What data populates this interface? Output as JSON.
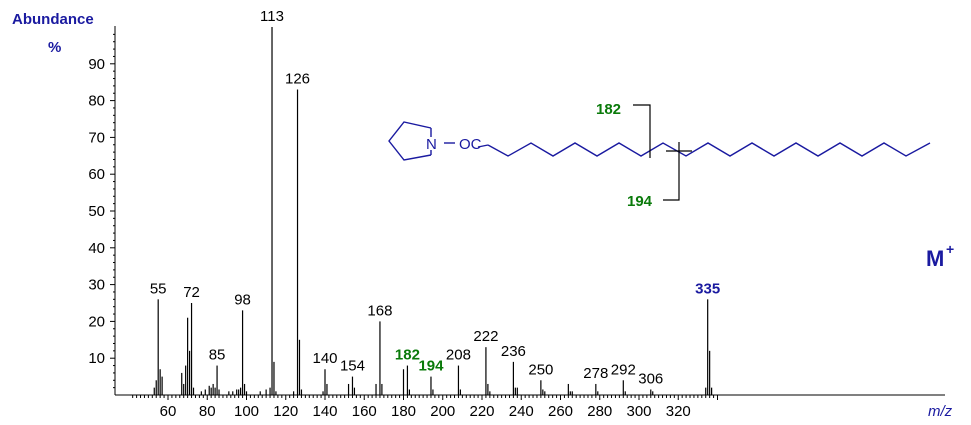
{
  "chart_data": {
    "type": "bar",
    "ylabel_line1": "Abundance",
    "ylabel_line2": "%",
    "xlabel": "m/z",
    "xlim": [
      40,
      340
    ],
    "ylim": [
      0,
      100
    ],
    "x_ticks": [
      60,
      80,
      100,
      120,
      140,
      160,
      180,
      200,
      220,
      240,
      260,
      280,
      300,
      320
    ],
    "y_ticks": [
      10,
      20,
      30,
      40,
      50,
      60,
      70,
      80,
      90
    ],
    "peaks": [
      {
        "x": 53,
        "y": 2
      },
      {
        "x": 54,
        "y": 4
      },
      {
        "x": 55,
        "y": 26
      },
      {
        "x": 56,
        "y": 7
      },
      {
        "x": 57,
        "y": 5
      },
      {
        "x": 67,
        "y": 6
      },
      {
        "x": 68,
        "y": 3
      },
      {
        "x": 69,
        "y": 8
      },
      {
        "x": 70,
        "y": 21
      },
      {
        "x": 71,
        "y": 12
      },
      {
        "x": 72,
        "y": 25
      },
      {
        "x": 73,
        "y": 2
      },
      {
        "x": 77,
        "y": 1
      },
      {
        "x": 79,
        "y": 1.5
      },
      {
        "x": 81,
        "y": 2.5
      },
      {
        "x": 82,
        "y": 2
      },
      {
        "x": 83,
        "y": 3
      },
      {
        "x": 84,
        "y": 2
      },
      {
        "x": 85,
        "y": 8
      },
      {
        "x": 86,
        "y": 1.5
      },
      {
        "x": 91,
        "y": 1
      },
      {
        "x": 93,
        "y": 1
      },
      {
        "x": 95,
        "y": 1.5
      },
      {
        "x": 96,
        "y": 1.5
      },
      {
        "x": 97,
        "y": 2
      },
      {
        "x": 98,
        "y": 23
      },
      {
        "x": 99,
        "y": 3
      },
      {
        "x": 100,
        "y": 1
      },
      {
        "x": 107,
        "y": 1
      },
      {
        "x": 110,
        "y": 1.5
      },
      {
        "x": 112,
        "y": 2
      },
      {
        "x": 113,
        "y": 100
      },
      {
        "x": 114,
        "y": 9
      },
      {
        "x": 115,
        "y": 1
      },
      {
        "x": 124,
        "y": 1
      },
      {
        "x": 126,
        "y": 83
      },
      {
        "x": 127,
        "y": 15
      },
      {
        "x": 128,
        "y": 1.5
      },
      {
        "x": 139,
        "y": 1
      },
      {
        "x": 140,
        "y": 7
      },
      {
        "x": 141,
        "y": 3
      },
      {
        "x": 152,
        "y": 3
      },
      {
        "x": 154,
        "y": 5
      },
      {
        "x": 155,
        "y": 2
      },
      {
        "x": 166,
        "y": 3
      },
      {
        "x": 168,
        "y": 20
      },
      {
        "x": 169,
        "y": 3
      },
      {
        "x": 180,
        "y": 7
      },
      {
        "x": 182,
        "y": 8
      },
      {
        "x": 183,
        "y": 1.5
      },
      {
        "x": 194,
        "y": 5
      },
      {
        "x": 195,
        "y": 1.5
      },
      {
        "x": 208,
        "y": 8
      },
      {
        "x": 209,
        "y": 1.5
      },
      {
        "x": 222,
        "y": 13
      },
      {
        "x": 223,
        "y": 3
      },
      {
        "x": 224,
        "y": 1
      },
      {
        "x": 236,
        "y": 9
      },
      {
        "x": 237,
        "y": 2
      },
      {
        "x": 238,
        "y": 2
      },
      {
        "x": 250,
        "y": 4
      },
      {
        "x": 251,
        "y": 1.5
      },
      {
        "x": 252,
        "y": 1
      },
      {
        "x": 264,
        "y": 3
      },
      {
        "x": 265,
        "y": 1
      },
      {
        "x": 266,
        "y": 1
      },
      {
        "x": 278,
        "y": 3
      },
      {
        "x": 279,
        "y": 1
      },
      {
        "x": 292,
        "y": 4
      },
      {
        "x": 293,
        "y": 1
      },
      {
        "x": 306,
        "y": 1.5
      },
      {
        "x": 307,
        "y": 1
      },
      {
        "x": 334,
        "y": 2
      },
      {
        "x": 335,
        "y": 26
      },
      {
        "x": 336,
        "y": 12
      },
      {
        "x": 337,
        "y": 2
      }
    ],
    "peak_labels": [
      {
        "x": 55,
        "y": 26,
        "text": "55",
        "color": "black"
      },
      {
        "x": 72,
        "y": 25,
        "text": "72",
        "color": "black"
      },
      {
        "x": 85,
        "y": 8,
        "text": "85",
        "color": "black"
      },
      {
        "x": 98,
        "y": 23,
        "text": "98",
        "color": "black"
      },
      {
        "x": 113,
        "y": 100,
        "text": "113",
        "color": "black"
      },
      {
        "x": 126,
        "y": 83,
        "text": "126",
        "color": "black"
      },
      {
        "x": 140,
        "y": 7,
        "text": "140",
        "color": "black"
      },
      {
        "x": 154,
        "y": 5,
        "text": "154",
        "color": "black"
      },
      {
        "x": 168,
        "y": 20,
        "text": "168",
        "color": "black"
      },
      {
        "x": 182,
        "y": 8,
        "text": "182",
        "color": "green"
      },
      {
        "x": 194,
        "y": 5,
        "text": "194",
        "color": "green"
      },
      {
        "x": 208,
        "y": 8,
        "text": "208",
        "color": "black"
      },
      {
        "x": 222,
        "y": 13,
        "text": "222",
        "color": "black"
      },
      {
        "x": 236,
        "y": 9,
        "text": "236",
        "color": "black"
      },
      {
        "x": 250,
        "y": 4,
        "text": "250",
        "color": "black"
      },
      {
        "x": 278,
        "y": 3,
        "text": "278",
        "color": "black"
      },
      {
        "x": 292,
        "y": 4,
        "text": "292",
        "color": "black"
      },
      {
        "x": 306,
        "y": 1.5,
        "text": "306",
        "color": "black"
      },
      {
        "x": 335,
        "y": 26,
        "text": "335",
        "color": "blue"
      }
    ],
    "molecular_ion_label": "M",
    "molecular_ion_sup": "+",
    "structure": {
      "n_label": "N",
      "oc_label": "OC",
      "fragment_labels": [
        "182",
        "194"
      ]
    },
    "colors": {
      "axis": "#000000",
      "text_blue": "#1a1aa0",
      "text_green": "#0a7a0a"
    }
  }
}
